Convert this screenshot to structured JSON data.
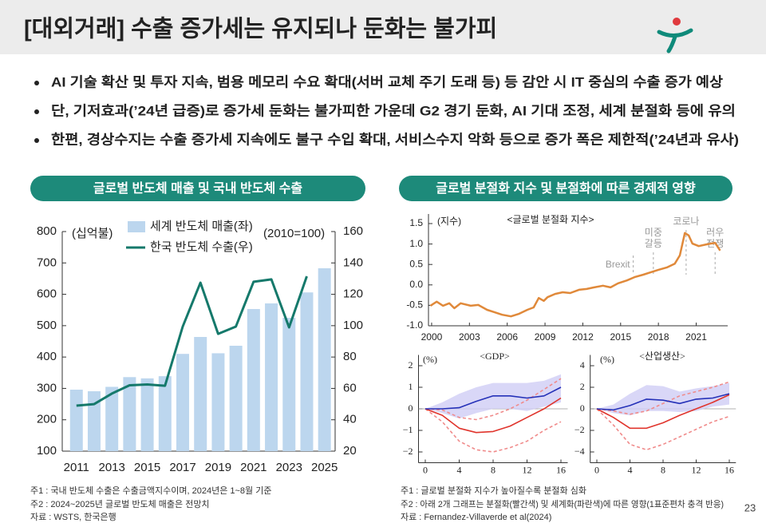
{
  "title": "[대외거래] 수출 증가세는 유지되나 둔화는 불가피",
  "bullets": [
    "AI 기술 확산 및 투자 지속, 범용 메모리 수요 확대(서버 교체 주기 도래 등) 등 감안 시 IT 중심의 수출 증가 예상",
    "단, 기저효과(’24년 급증)로 증가세 둔화는 불가피한 가운데 G2 경기 둔화, AI 기대 조정, 세계 분절화 등에 유의",
    "한편, 경상수지는 수출 증가세 지속에도 불구 수입 확대, 서비스수지 악화 등으로 증가 폭은 제한적(’24년과 유사)"
  ],
  "sections": [
    "글로벌 반도체 매출 및 국내 반도체 수출",
    "글로벌 분절화 지수 및 분절화에 따른 경제적 영향"
  ],
  "notes": {
    "left": [
      "주1 : 국내 반도체 수출은 수출금액지수이며, 2024년은 1~8월 기준",
      "주2 : 2024~2025년 글로벌 반도체 매출은 전망치",
      "자료 : WSTS, 한국은행"
    ],
    "right": [
      "주1 : 글로벌 분절화 지수가 높아질수록 분절화 심화",
      "주2 : 아래 2개 그래프는 분절화(빨간색) 및 세계화(파란색)에 따른 영향(1표준편차 충격 반응)",
      "자료 : Fernandez-Villaverde et al(2024)"
    ]
  },
  "page": "23",
  "chart_data": [
    {
      "type": "bar",
      "y_label": "(십억불)",
      "y2_label": "(2010=100)",
      "x": [
        2011,
        2012,
        2013,
        2014,
        2015,
        2016,
        2017,
        2018,
        2019,
        2020,
        2021,
        2022,
        2023,
        2024,
        2025
      ],
      "xlim": [
        2010.2,
        2025.6
      ],
      "xticks": [
        2011,
        2013,
        2015,
        2017,
        2019,
        2021,
        2023,
        2025
      ],
      "ylim": [
        100,
        800
      ],
      "yticks": [
        100,
        200,
        300,
        400,
        500,
        600,
        700,
        800
      ],
      "y2lim": [
        20,
        160
      ],
      "y2ticks": [
        20,
        40,
        60,
        80,
        100,
        120,
        140,
        160
      ],
      "series": [
        {
          "name": "세계 반도체 매출(좌)",
          "type": "bar",
          "color": "#bcd6ee",
          "values": [
            296,
            291,
            305,
            336,
            332,
            339,
            410,
            464,
            412,
            436,
            553,
            571,
            525,
            606,
            683
          ]
        },
        {
          "name": "한국 반도체 수출(우)",
          "type": "line",
          "axis": "y2",
          "color": "#15796b",
          "values": [
            49,
            50,
            56.7,
            62,
            62.5,
            61.7,
            99.4,
            127.4,
            94.8,
            99.4,
            128,
            129.5,
            98.9,
            131.5,
            null
          ]
        }
      ]
    },
    {
      "type": "line",
      "title": "<글로벌 분절화 지수>",
      "y_label": "(지수)",
      "xlim": [
        1999.75,
        2023.5
      ],
      "xticks": [
        2000,
        2003,
        2006,
        2009,
        2012,
        2015,
        2018,
        2021
      ],
      "ylim": [
        -1.0,
        1.5
      ],
      "yticks": [
        {
          "value": -1,
          "label": "-1.0"
        },
        -0.5,
        {
          "value": 0,
          "label": "0.0"
        },
        0.5,
        {
          "value": 1,
          "label": "1.0"
        },
        1.5
      ],
      "annotations": [
        {
          "x": 2016.0,
          "lines": [
            "Brexit"
          ]
        },
        {
          "x": 2017.6,
          "lines": [
            "미중",
            "갈등"
          ]
        },
        {
          "x": 2020.2,
          "lines": [
            "코로나"
          ]
        },
        {
          "x": 2022.5,
          "lines": [
            "러우",
            "전쟁"
          ]
        }
      ],
      "series": [
        {
          "color": "#e0893a",
          "x": [
            1999.9,
            2000.4,
            2000.9,
            2001.4,
            2001.8,
            2002.3,
            2003.1,
            2003.7,
            2004.4,
            2005.0,
            2005.6,
            2006.3,
            2006.9,
            2007.6,
            2008.1,
            2008.5,
            2008.9,
            2009.2,
            2009.8,
            2010.4,
            2011.0,
            2011.7,
            2012.3,
            2012.9,
            2013.6,
            2014.2,
            2014.8,
            2015.5,
            2016.1,
            2016.8,
            2017.4,
            2018.0,
            2018.7,
            2019.3,
            2019.7,
            2020.1,
            2020.4,
            2020.7,
            2021.2,
            2021.8,
            2022.5,
            2022.9
          ],
          "values": [
            -0.51,
            -0.41,
            -0.51,
            -0.45,
            -0.57,
            -0.45,
            -0.51,
            -0.49,
            -0.61,
            -0.67,
            -0.73,
            -0.77,
            -0.71,
            -0.61,
            -0.55,
            -0.32,
            -0.39,
            -0.3,
            -0.22,
            -0.18,
            -0.2,
            -0.12,
            -0.1,
            -0.06,
            -0.02,
            -0.06,
            0.04,
            0.11,
            0.19,
            0.25,
            0.31,
            0.37,
            0.43,
            0.52,
            0.72,
            1.27,
            1.21,
            1.01,
            0.95,
            0.99,
            1.03,
            0.84
          ]
        }
      ]
    },
    {
      "type": "line",
      "title": "<GDP>",
      "y_label": "(%)",
      "zero_line": true,
      "x": [
        0,
        2,
        4,
        6,
        8,
        10,
        12,
        14,
        16
      ],
      "xlim": [
        -0.8,
        16.8
      ],
      "xticks": [
        0,
        4,
        8,
        12,
        16
      ],
      "ylim": [
        -2.5,
        2.5
      ],
      "yticks": [
        {
          "value": -2,
          "label": "−2"
        },
        {
          "value": -1,
          "label": "−1"
        },
        0,
        1,
        2
      ],
      "series": [
        {
          "type": "band",
          "color": "#cfcdf5",
          "upper": [
            0,
            0.3,
            0.7,
            1.0,
            1.2,
            1.2,
            1.2,
            1.3,
            1.6
          ],
          "lower": [
            0,
            -0.2,
            -0.45,
            -0.2,
            0,
            0,
            -0.1,
            0.1,
            0.3
          ]
        },
        {
          "color": "#f08b8b",
          "dash": true,
          "values": [
            0,
            -0.6,
            -1.5,
            -1.9,
            -2.0,
            -1.8,
            -1.5,
            -1.0,
            -0.6
          ]
        },
        {
          "color": "#f08b8b",
          "dash": true,
          "values": [
            0,
            -0.05,
            -0.4,
            -0.5,
            -0.3,
            0,
            0.4,
            0.9,
            1.4
          ]
        },
        {
          "color": "#e0342c",
          "values": [
            0,
            -0.3,
            -0.9,
            -1.1,
            -1.05,
            -0.8,
            -0.4,
            0,
            0.5
          ]
        },
        {
          "color": "#2531b8",
          "values": [
            0,
            0,
            0.05,
            0.35,
            0.6,
            0.6,
            0.5,
            0.6,
            1.0
          ]
        }
      ]
    },
    {
      "type": "line",
      "title": "<산업생산>",
      "y_label": "(%)",
      "zero_line": true,
      "x": [
        0,
        2,
        4,
        6,
        8,
        10,
        12,
        14,
        16
      ],
      "xlim": [
        -0.8,
        16.8
      ],
      "xticks": [
        0,
        4,
        8,
        12,
        16
      ],
      "ylim": [
        -5,
        5
      ],
      "yticks": [
        {
          "value": -4,
          "label": "−4"
        },
        {
          "value": -2,
          "label": "−2"
        },
        0,
        2,
        4
      ],
      "series": [
        {
          "type": "band",
          "color": "#cfcdf5",
          "upper": [
            0,
            0.4,
            1.4,
            2.2,
            2.1,
            1.6,
            1.9,
            2.1,
            2.4
          ],
          "lower": [
            0,
            -0.4,
            -0.6,
            -0.2,
            -0.2,
            -0.3,
            -0.2,
            0.2,
            0.4
          ]
        },
        {
          "color": "#f08b8b",
          "dash": true,
          "values": [
            0,
            -1.5,
            -3.3,
            -3.8,
            -3.3,
            -2.6,
            -1.9,
            -1.2,
            -0.7
          ]
        },
        {
          "color": "#f08b8b",
          "dash": true,
          "values": [
            0,
            -0.2,
            -0.5,
            -0.2,
            0.5,
            1.2,
            1.6,
            2.0,
            2.5
          ]
        },
        {
          "color": "#e0342c",
          "values": [
            0,
            -0.8,
            -1.8,
            -1.8,
            -1.3,
            -0.6,
            0,
            0.6,
            1.3
          ]
        },
        {
          "color": "#2531b8",
          "values": [
            0,
            -0.1,
            0.3,
            0.9,
            0.8,
            0.5,
            0.9,
            1.0,
            1.4
          ]
        }
      ]
    }
  ]
}
